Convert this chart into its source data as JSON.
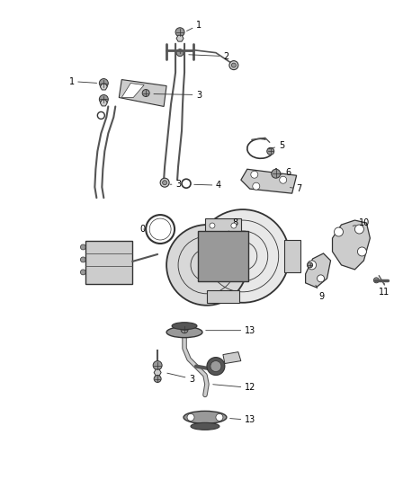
{
  "background_color": "#ffffff",
  "line_color": "#333333",
  "label_color": "#000000",
  "figure_width": 4.38,
  "figure_height": 5.33,
  "dpi": 100,
  "gray_light": "#cccccc",
  "gray_mid": "#999999",
  "gray_dark": "#555555",
  "label_fontsize": 7.0
}
